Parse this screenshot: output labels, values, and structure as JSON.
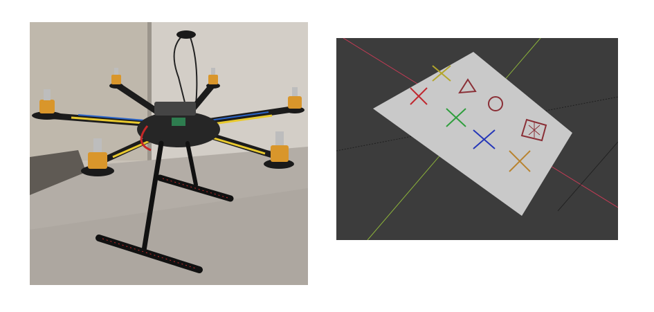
{
  "figure": {
    "left_panel": {
      "kind": "photo",
      "subject": "hexacopter-drone"
    },
    "right_panel": {
      "kind": "3d-viewport-render",
      "background_color": "#3c3c3c",
      "plane_color": "#c9c9c9",
      "markers": [
        {
          "shape": "cross",
          "color": "#c0282f"
        },
        {
          "shape": "cross",
          "color": "#b3a62b"
        },
        {
          "shape": "triangle",
          "color": "#8a2f36"
        },
        {
          "shape": "circle",
          "color": "#8a2f36"
        },
        {
          "shape": "cross",
          "color": "#2f9e3d"
        },
        {
          "shape": "cross",
          "color": "#2436b8"
        },
        {
          "shape": "boxed-star",
          "color": "#8a2f36"
        },
        {
          "shape": "cross",
          "color": "#b8832f"
        }
      ],
      "axis_colors": {
        "x": "#c43b55",
        "y": "#8db43a"
      }
    }
  }
}
